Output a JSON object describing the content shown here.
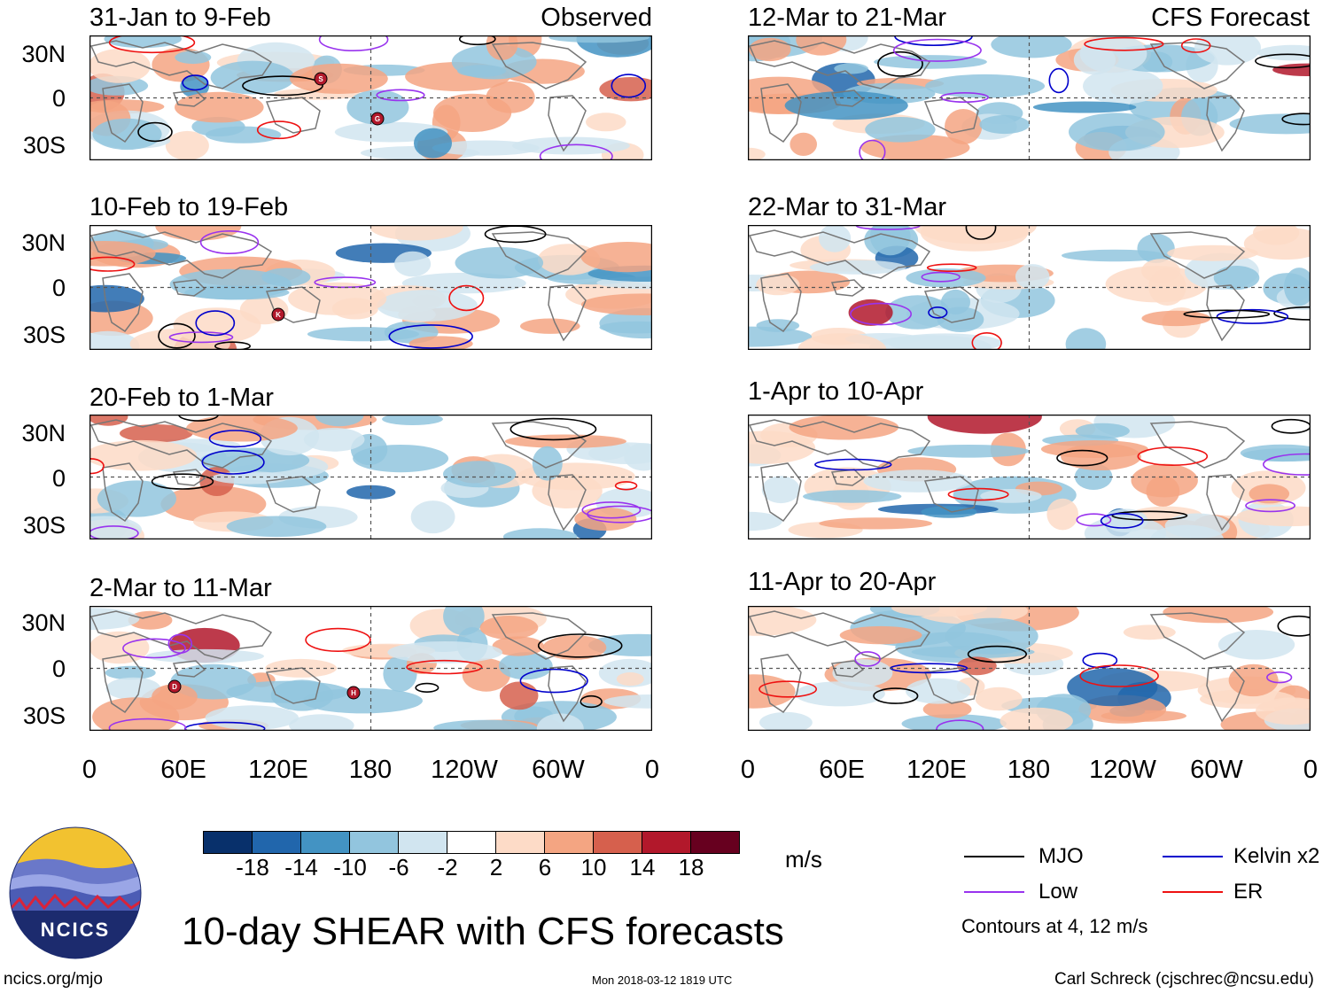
{
  "panels": [
    {
      "title": "31-Jan to 9-Feb",
      "label": "Observed"
    },
    {
      "title": "10-Feb to 19-Feb",
      "label": ""
    },
    {
      "title": "20-Feb to 1-Mar",
      "label": ""
    },
    {
      "title": "2-Mar to 11-Mar",
      "label": ""
    },
    {
      "title": "12-Mar to 21-Mar",
      "label": "CFS Forecast"
    },
    {
      "title": "22-Mar to 31-Mar",
      "label": ""
    },
    {
      "title": "1-Apr to 10-Apr",
      "label": ""
    },
    {
      "title": "11-Apr to 20-Apr",
      "label": ""
    }
  ],
  "lat_labels": [
    "30N",
    "0",
    "30S"
  ],
  "lon_labels": [
    "0",
    "60E",
    "120E",
    "180",
    "120W",
    "60W",
    "0"
  ],
  "storm_labels": [
    "S",
    "G",
    "K",
    "D",
    "H"
  ],
  "colorbar": {
    "ticks": [
      "-18",
      "-14",
      "-10",
      "-6",
      "-2",
      "2",
      "6",
      "10",
      "14",
      "18"
    ],
    "colors": [
      "#08306b",
      "#2166ac",
      "#4393c3",
      "#92c5de",
      "#d1e5f0",
      "#ffffff",
      "#fddbc7",
      "#f4a582",
      "#d6604d",
      "#b2182b",
      "#67001f"
    ],
    "units": "m/s"
  },
  "legend": [
    {
      "label": "MJO",
      "color": "#000000"
    },
    {
      "label": "Kelvin x2",
      "color": "#0000cc"
    },
    {
      "label": "Low",
      "color": "#9933ee"
    },
    {
      "label": "ER",
      "color": "#ee1111"
    }
  ],
  "contours_note": "Contours at 4, 12 m/s",
  "main_title": "10-day SHEAR with CFS forecasts",
  "logo_text": "NCICS",
  "footer": {
    "left": "ncics.org/mjo",
    "middle": "Mon 2018-03-12 1819 UTC",
    "right": "Carl Schreck (cjschrec@ncsu.edu)"
  }
}
